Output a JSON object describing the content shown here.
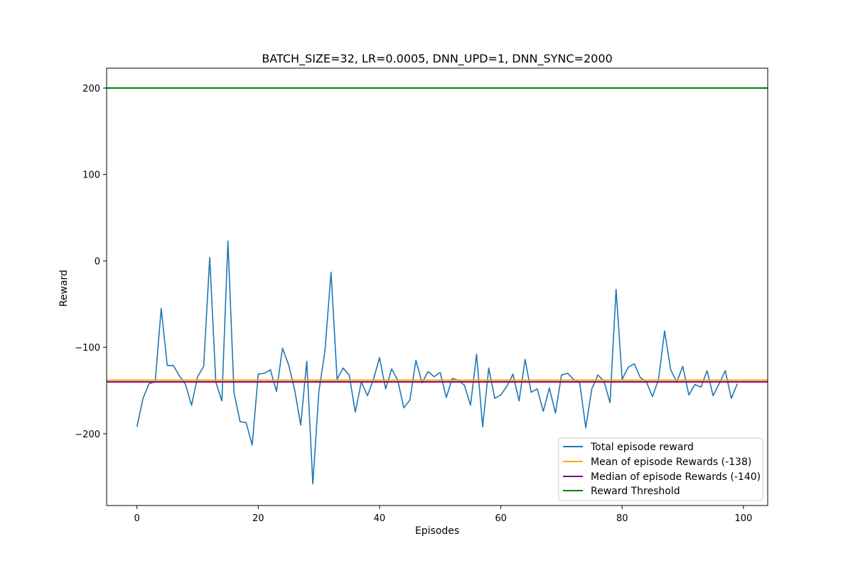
{
  "chart_data": {
    "type": "line",
    "title": "BATCH_SIZE=32, LR=0.0005, DNN_UPD=1, DNN_SYNC=2000",
    "xlabel": "Episodes",
    "ylabel": "Reward",
    "xlim": [
      -5,
      104
    ],
    "ylim": [
      -283,
      223
    ],
    "xticks": [
      0,
      20,
      40,
      60,
      80,
      100
    ],
    "yticks": [
      -200,
      -100,
      0,
      100,
      200
    ],
    "grid": false,
    "legend_position": "lower right",
    "series": [
      {
        "name": "Total episode reward",
        "color": "#1f77b4",
        "x": [
          0,
          1,
          2,
          3,
          4,
          5,
          6,
          7,
          8,
          9,
          10,
          11,
          12,
          13,
          14,
          15,
          16,
          17,
          18,
          19,
          20,
          21,
          22,
          23,
          24,
          25,
          26,
          27,
          28,
          29,
          30,
          31,
          32,
          33,
          34,
          35,
          36,
          37,
          38,
          39,
          40,
          41,
          42,
          43,
          44,
          45,
          46,
          47,
          48,
          49,
          50,
          51,
          52,
          53,
          54,
          55,
          56,
          57,
          58,
          59,
          60,
          61,
          62,
          63,
          64,
          65,
          66,
          67,
          68,
          69,
          70,
          71,
          72,
          73,
          74,
          75,
          76,
          77,
          78,
          79,
          80,
          81,
          82,
          83,
          84,
          85,
          86,
          87,
          88,
          89,
          90,
          91,
          92,
          93,
          94,
          95,
          96,
          97,
          98,
          99
        ],
        "values": [
          -192,
          -159,
          -142,
          -140,
          -55,
          -121,
          -121,
          -133,
          -143,
          -167,
          -134,
          -122,
          4,
          -140,
          -162,
          23,
          -152,
          -186,
          -187,
          -213,
          -131,
          -130,
          -126,
          -151,
          -101,
          -120,
          -149,
          -190,
          -116,
          -258,
          -151,
          -104,
          -13,
          -137,
          -124,
          -132,
          -175,
          -140,
          -156,
          -137,
          -112,
          -148,
          -125,
          -138,
          -170,
          -161,
          -115,
          -141,
          -128,
          -134,
          -129,
          -158,
          -136,
          -138,
          -144,
          -167,
          -108,
          -192,
          -124,
          -159,
          -155,
          -145,
          -131,
          -162,
          -114,
          -152,
          -148,
          -174,
          -147,
          -176,
          -132,
          -130,
          -137,
          -141,
          -193,
          -148,
          -132,
          -139,
          -164,
          -33,
          -137,
          -123,
          -119,
          -135,
          -140,
          -157,
          -137,
          -81,
          -126,
          -140,
          -122,
          -155,
          -143,
          -146,
          -127,
          -156,
          -142,
          -127,
          -159,
          -142
        ]
      },
      {
        "name": "Mean of episode Rewards (-138)",
        "color": "#ffa500",
        "y": -138,
        "kind": "hline"
      },
      {
        "name": "Median of episode Rewards (-140)",
        "color": "#800080",
        "y": -140,
        "kind": "hline"
      },
      {
        "name": "Reward Threshold",
        "color": "#008000",
        "y": 200,
        "kind": "hline"
      }
    ]
  }
}
